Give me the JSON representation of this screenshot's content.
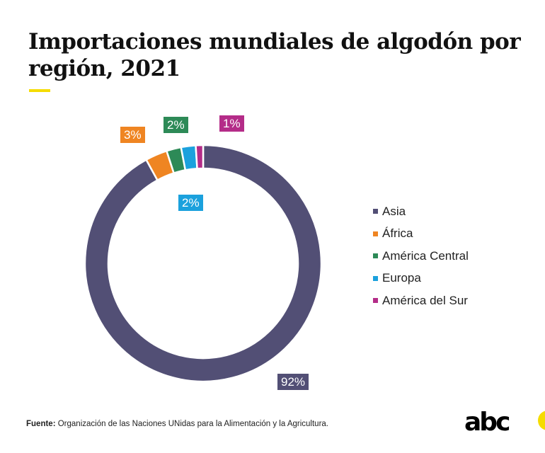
{
  "chart_data": {
    "type": "pie",
    "donut": true,
    "title": "Importaciones mundiales de algodón por región, 2021",
    "categories": [
      "Asia",
      "África",
      "América Central",
      "Europa",
      "América del Sur"
    ],
    "values": [
      92,
      3,
      2,
      2,
      1
    ],
    "labels": [
      "92%",
      "3%",
      "2%",
      "2%",
      "1%"
    ],
    "colors": [
      "#524f75",
      "#ef8522",
      "#2d8a57",
      "#1ba1dd",
      "#b42c88"
    ],
    "legend_position": "right"
  },
  "source": {
    "label": "Fuente:",
    "text": "Organización de las Naciones UNidas para la Alimentación y la Agricultura."
  },
  "brand": {
    "logo_text": "abc",
    "accent_color": "#f5dc00"
  }
}
